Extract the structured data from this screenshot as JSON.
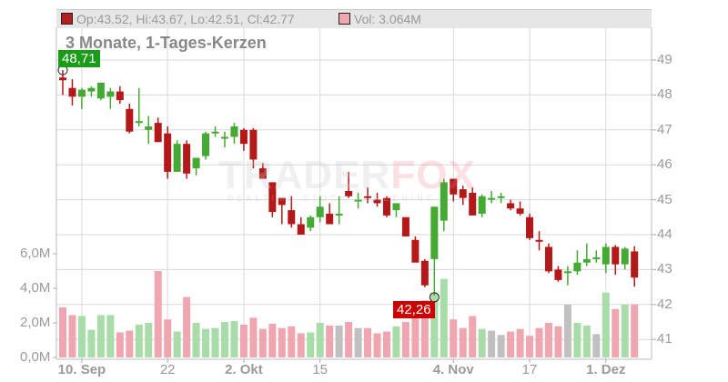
{
  "legend": {
    "ohlc_text": "Op:43.52, Hi:43.67, Lo:42.51, Cl:42.77",
    "ohlc_swatch_color": "#b41e1e",
    "volume_text": "Vol: 3.064M",
    "volume_swatch_color": "#f0a8b0"
  },
  "subtitle": "3 Monate, 1-Tages-Kerzen",
  "watermark": {
    "brand_a": "TRADER",
    "brand_b": "FOX",
    "tagline": "REALTIME STOCK SCREENING"
  },
  "markers": {
    "high": {
      "label": "48,71",
      "color": "#1a9c1a"
    },
    "low": {
      "label": "42,26",
      "color": "#cc0000"
    }
  },
  "chart_data": {
    "type": "candlestick",
    "title": "3 Monate, 1-Tages-Kerzen",
    "price_axis": {
      "position": "right",
      "ticks": [
        49,
        48,
        47,
        46,
        45,
        44,
        43,
        42,
        41
      ],
      "range": [
        40.5,
        49.5
      ]
    },
    "volume_axis": {
      "position": "left",
      "ticks": [
        "0,0M",
        "2,0M",
        "4,0M",
        "6,0M"
      ],
      "range": [
        0,
        6.5
      ]
    },
    "x_ticks": [
      {
        "label": "10. Sep",
        "index": 2,
        "bold": true
      },
      {
        "label": "22",
        "index": 11,
        "bold": false
      },
      {
        "label": "2. Okt",
        "index": 19,
        "bold": true
      },
      {
        "label": "15",
        "index": 27,
        "bold": false
      },
      {
        "label": "4. Nov",
        "index": 41,
        "bold": true
      },
      {
        "label": "17",
        "index": 49,
        "bold": false
      },
      {
        "label": "1. Dez",
        "index": 57,
        "bold": true
      }
    ],
    "colors": {
      "up": "#44aa33",
      "down": "#b41919",
      "vol_up": "#a8dca8",
      "vol_down": "#f0a6b0",
      "vol_flat": "#c0c0c0",
      "grid": "#d8d8d8"
    },
    "candles": [
      {
        "o": 48.5,
        "h": 48.71,
        "l": 48.0,
        "c": 48.42,
        "v": 2.9
      },
      {
        "o": 48.2,
        "h": 48.45,
        "l": 47.7,
        "c": 47.95,
        "v": 2.45
      },
      {
        "o": 47.95,
        "h": 48.2,
        "l": 47.6,
        "c": 48.15,
        "v": 2.4
      },
      {
        "o": 48.1,
        "h": 48.25,
        "l": 47.95,
        "c": 48.2,
        "v": 1.6
      },
      {
        "o": 47.9,
        "h": 48.35,
        "l": 47.85,
        "c": 48.35,
        "v": 2.45
      },
      {
        "o": 47.95,
        "h": 48.2,
        "l": 47.6,
        "c": 48.1,
        "v": 2.45
      },
      {
        "o": 48.1,
        "h": 48.25,
        "l": 47.75,
        "c": 47.85,
        "v": 1.45
      },
      {
        "o": 47.6,
        "h": 47.75,
        "l": 46.9,
        "c": 46.95,
        "v": 1.55
      },
      {
        "o": 47.2,
        "h": 48.2,
        "l": 47.1,
        "c": 47.25,
        "v": 1.9
      },
      {
        "o": 47.0,
        "h": 47.4,
        "l": 46.6,
        "c": 47.1,
        "v": 2.0
      },
      {
        "o": 47.2,
        "h": 47.35,
        "l": 46.65,
        "c": 46.65,
        "v": 5.0
      },
      {
        "o": 46.9,
        "h": 47.1,
        "l": 45.6,
        "c": 45.8,
        "v": 2.2
      },
      {
        "o": 45.8,
        "h": 46.7,
        "l": 45.8,
        "c": 46.6,
        "v": 1.5
      },
      {
        "o": 46.6,
        "h": 46.7,
        "l": 45.6,
        "c": 45.75,
        "v": 3.5
      },
      {
        "o": 45.9,
        "h": 46.2,
        "l": 45.7,
        "c": 46.2,
        "v": 2.0
      },
      {
        "o": 46.25,
        "h": 46.95,
        "l": 46.15,
        "c": 46.9,
        "v": 1.65
      },
      {
        "o": 46.9,
        "h": 47.1,
        "l": 46.8,
        "c": 46.95,
        "v": 1.7
      },
      {
        "o": 46.75,
        "h": 46.95,
        "l": 46.5,
        "c": 46.8,
        "v": 2.05
      },
      {
        "o": 46.8,
        "h": 47.2,
        "l": 46.6,
        "c": 47.1,
        "v": 2.1
      },
      {
        "o": 47.0,
        "h": 47.05,
        "l": 46.4,
        "c": 46.6,
        "v": 1.9
      },
      {
        "o": 47.0,
        "h": 47.05,
        "l": 45.9,
        "c": 46.15,
        "v": 2.3
      },
      {
        "o": 45.9,
        "h": 46.05,
        "l": 45.6,
        "c": 45.6,
        "v": 1.65
      },
      {
        "o": 45.5,
        "h": 45.5,
        "l": 44.5,
        "c": 44.65,
        "v": 1.95
      },
      {
        "o": 45.05,
        "h": 45.05,
        "l": 44.3,
        "c": 44.85,
        "v": 1.7
      },
      {
        "o": 44.7,
        "h": 45.1,
        "l": 44.2,
        "c": 44.3,
        "v": 1.8
      },
      {
        "o": 44.3,
        "h": 44.5,
        "l": 44.0,
        "c": 44.0,
        "v": 1.4
      },
      {
        "o": 44.2,
        "h": 44.55,
        "l": 44.1,
        "c": 44.5,
        "v": 1.45
      },
      {
        "o": 44.5,
        "h": 45.1,
        "l": 44.35,
        "c": 44.8,
        "v": 2.0
      },
      {
        "o": 44.6,
        "h": 44.9,
        "l": 44.3,
        "c": 44.3,
        "v": 1.85
      },
      {
        "o": 44.6,
        "h": 45.1,
        "l": 44.3,
        "c": 44.6,
        "v": 1.85
      },
      {
        "o": 45.25,
        "h": 45.8,
        "l": 45.05,
        "c": 45.1,
        "v": 2.05
      },
      {
        "o": 45.0,
        "h": 45.2,
        "l": 44.75,
        "c": 45.0,
        "v": 1.7
      },
      {
        "o": 45.1,
        "h": 45.35,
        "l": 44.9,
        "c": 45.05,
        "v": 1.7
      },
      {
        "o": 45.0,
        "h": 45.2,
        "l": 44.8,
        "c": 44.9,
        "v": 1.4
      },
      {
        "o": 45.05,
        "h": 45.1,
        "l": 44.5,
        "c": 44.55,
        "v": 1.5
      },
      {
        "o": 44.7,
        "h": 44.9,
        "l": 44.5,
        "c": 44.9,
        "v": 1.8
      },
      {
        "o": 44.5,
        "h": 44.5,
        "l": 43.95,
        "c": 43.95,
        "v": 2.05
      },
      {
        "o": 43.85,
        "h": 43.95,
        "l": 43.25,
        "c": 43.2,
        "v": 2.4
      },
      {
        "o": 43.25,
        "h": 43.3,
        "l": 42.5,
        "c": 42.55,
        "v": 3.3
      },
      {
        "o": 43.3,
        "h": 44.8,
        "l": 42.26,
        "c": 44.8,
        "v": 3.7
      },
      {
        "o": 44.4,
        "h": 45.6,
        "l": 44.1,
        "c": 45.5,
        "v": 4.55
      },
      {
        "o": 45.6,
        "h": 45.6,
        "l": 44.95,
        "c": 45.15,
        "v": 2.2
      },
      {
        "o": 45.3,
        "h": 45.4,
        "l": 44.85,
        "c": 45.05,
        "v": 1.7
      },
      {
        "o": 45.2,
        "h": 45.35,
        "l": 44.6,
        "c": 44.55,
        "v": 2.4
      },
      {
        "o": 44.6,
        "h": 45.15,
        "l": 44.5,
        "c": 45.1,
        "v": 1.65
      },
      {
        "o": 45.05,
        "h": 45.25,
        "l": 44.9,
        "c": 45.05,
        "v": 1.55
      },
      {
        "o": 45.1,
        "h": 45.2,
        "l": 44.9,
        "c": 45.1,
        "v": 1.3
      },
      {
        "o": 44.9,
        "h": 45.0,
        "l": 44.7,
        "c": 44.75,
        "v": 1.5
      },
      {
        "o": 44.75,
        "h": 44.95,
        "l": 44.55,
        "c": 44.6,
        "v": 1.65
      },
      {
        "o": 44.5,
        "h": 44.6,
        "l": 43.85,
        "c": 43.9,
        "v": 1.25
      },
      {
        "o": 43.85,
        "h": 44.1,
        "l": 43.55,
        "c": 43.8,
        "v": 1.7
      },
      {
        "o": 43.65,
        "h": 43.75,
        "l": 42.9,
        "c": 42.95,
        "v": 2.0
      },
      {
        "o": 43.0,
        "h": 43.1,
        "l": 42.65,
        "c": 42.7,
        "v": 1.8
      },
      {
        "o": 42.95,
        "h": 43.1,
        "l": 42.55,
        "c": 42.95,
        "v": 3.05
      },
      {
        "o": 42.95,
        "h": 43.55,
        "l": 42.85,
        "c": 43.2,
        "v": 2.0
      },
      {
        "o": 43.2,
        "h": 43.75,
        "l": 43.1,
        "c": 43.3,
        "v": 1.85
      },
      {
        "o": 43.3,
        "h": 43.55,
        "l": 43.2,
        "c": 43.35,
        "v": 1.35
      },
      {
        "o": 43.15,
        "h": 43.75,
        "l": 42.9,
        "c": 43.65,
        "v": 3.75
      },
      {
        "o": 43.65,
        "h": 43.7,
        "l": 42.85,
        "c": 43.15,
        "v": 2.8
      },
      {
        "o": 43.15,
        "h": 43.65,
        "l": 43.0,
        "c": 43.6,
        "v": 3.05
      },
      {
        "o": 43.52,
        "h": 43.67,
        "l": 42.51,
        "c": 42.77,
        "v": 3.064
      }
    ]
  }
}
